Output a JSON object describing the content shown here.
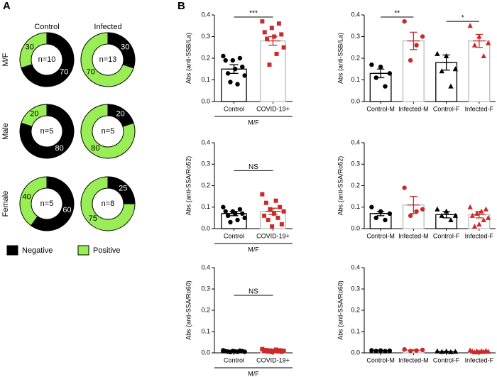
{
  "panel_a": {
    "label": "A",
    "columns": [
      "Control",
      "Infected"
    ],
    "rows": [
      "M/F",
      "Male",
      "Female"
    ]
  },
  "panel_b": {
    "label": "B"
  },
  "legend": [
    {
      "name": "Negative",
      "color": "#000000"
    },
    {
      "name": "Positive",
      "color": "#99ee55"
    }
  ],
  "chart_data": [
    {
      "type": "donut",
      "categories": [
        "Negative",
        "Positive"
      ],
      "values": [
        70,
        30
      ],
      "colors": [
        "#000000",
        "#99ee55"
      ],
      "center_label": "n=10"
    },
    {
      "type": "donut",
      "categories": [
        "Negative",
        "Positive"
      ],
      "values": [
        30,
        70
      ],
      "colors": [
        "#000000",
        "#99ee55"
      ],
      "center_label": "n=13"
    },
    {
      "type": "donut",
      "categories": [
        "Negative",
        "Positive"
      ],
      "values": [
        80,
        20
      ],
      "colors": [
        "#000000",
        "#99ee55"
      ],
      "center_label": "n=5"
    },
    {
      "type": "donut",
      "categories": [
        "Negative",
        "Positive"
      ],
      "values": [
        20,
        80
      ],
      "colors": [
        "#000000",
        "#99ee55"
      ],
      "center_label": "n=5"
    },
    {
      "type": "donut",
      "categories": [
        "Negative",
        "Positive"
      ],
      "values": [
        60,
        40
      ],
      "colors": [
        "#000000",
        "#99ee55"
      ],
      "center_label": "n=5"
    },
    {
      "type": "donut",
      "categories": [
        "Negative",
        "Positive"
      ],
      "values": [
        25,
        75
      ],
      "colors": [
        "#000000",
        "#99ee55"
      ],
      "center_label": "n=8"
    },
    {
      "type": "bar_scatter",
      "ylabel": "Abs (anti-SSB/La)",
      "categories": [
        "Control",
        "COVID-19+"
      ],
      "values": [
        0.15,
        0.28
      ],
      "errors": [
        0.02,
        0.02
      ],
      "points": [
        [
          0.21,
          0.2,
          0.19,
          0.19,
          0.16,
          0.15,
          0.13,
          0.12,
          0.08,
          0.09
        ],
        [
          0.37,
          0.36,
          0.34,
          0.32,
          0.31,
          0.3,
          0.29,
          0.25,
          0.22,
          0.17
        ]
      ],
      "colors": [
        "#000000",
        "#cc2a2a"
      ],
      "bar_edge_colors": [
        "#000000",
        "#bbbbbb"
      ],
      "markers": [
        "circle",
        "square"
      ],
      "ylim": [
        0,
        0.4
      ],
      "yticks": [
        {
          "value": 0,
          "label": "0.0"
        },
        0.1,
        0.2,
        0.3,
        0.4
      ],
      "annotations": [
        {
          "text": "***",
          "between": [
            "Control",
            "COVID-19+"
          ],
          "y": 0.39
        }
      ],
      "group_label": "M/F"
    },
    {
      "type": "bar_scatter",
      "ylabel": "Abs (anti-SSB/La)",
      "categories": [
        "Control-M",
        "Infected-M",
        "Control-F",
        "Infected-F"
      ],
      "values": [
        0.13,
        0.28,
        0.18,
        0.28
      ],
      "errors": [
        0.02,
        0.04,
        0.035,
        0.03
      ],
      "points": [
        [
          0.17,
          0.16,
          0.13,
          0.11,
          0.07
        ],
        [
          0.37,
          0.3,
          0.26,
          0.19
        ],
        [
          0.22,
          0.21,
          0.15,
          0.14,
          0.07
        ],
        [
          0.35,
          0.3,
          0.27,
          0.26,
          0.21
        ]
      ],
      "colors": [
        "#000000",
        "#cc2a2a",
        "#000000",
        "#cc2a2a"
      ],
      "bar_edge_colors": [
        "#000000",
        "#bbbbbb",
        "#000000",
        "#bbbbbb"
      ],
      "markers": [
        "circle",
        "circle",
        "triangle",
        "triangle"
      ],
      "ylim": [
        0,
        0.4
      ],
      "yticks": [
        {
          "value": 0,
          "label": "0.0"
        },
        0.1,
        0.2,
        0.3,
        0.4
      ],
      "annotations": [
        {
          "text": "**",
          "between": [
            "Control-M",
            "Infected-M"
          ],
          "y": 0.39
        },
        {
          "text": "*",
          "between": [
            "Control-F",
            "Infected-F"
          ],
          "y": 0.37
        }
      ]
    },
    {
      "type": "bar_scatter",
      "ylabel": "Abs (anti-SSA/Ro52)",
      "categories": [
        "Control",
        "COVID-19+"
      ],
      "values": [
        0.07,
        0.08
      ],
      "errors": [
        0.01,
        0.015
      ],
      "points": [
        [
          0.1,
          0.09,
          0.08,
          0.08,
          0.07,
          0.07,
          0.06,
          0.05,
          0.04,
          0.03
        ],
        [
          0.16,
          0.13,
          0.12,
          0.1,
          0.09,
          0.08,
          0.07,
          0.06,
          0.05,
          0.04,
          0.02,
          0.01
        ]
      ],
      "colors": [
        "#000000",
        "#cc2a2a"
      ],
      "bar_edge_colors": [
        "#000000",
        "#bbbbbb"
      ],
      "markers": [
        "circle",
        "square"
      ],
      "ylim": [
        0,
        0.4
      ],
      "yticks": [
        {
          "value": 0,
          "label": "0.0"
        },
        0.1,
        0.2,
        0.3,
        0.4
      ],
      "annotations": [
        {
          "text": "NS",
          "between": [
            "Control",
            "COVID-19+"
          ],
          "y": 0.27
        }
      ],
      "group_label": "M/F"
    },
    {
      "type": "bar_scatter",
      "ylabel": "Abs (anti-SSA/Ro52)",
      "categories": [
        "Control-M",
        "Infected-M",
        "Control-F",
        "Infected-F"
      ],
      "values": [
        0.07,
        0.11,
        0.065,
        0.065
      ],
      "errors": [
        0.01,
        0.04,
        0.015,
        0.015
      ],
      "points": [
        [
          0.1,
          0.08,
          0.07,
          0.05,
          0.04
        ],
        [
          0.19,
          0.09,
          0.08,
          0.06
        ],
        [
          0.09,
          0.08,
          0.06,
          0.06,
          0.04
        ],
        [
          0.1,
          0.09,
          0.08,
          0.07,
          0.06,
          0.05,
          0.04,
          0.02,
          0.01
        ]
      ],
      "colors": [
        "#000000",
        "#cc2a2a",
        "#000000",
        "#cc2a2a"
      ],
      "bar_edge_colors": [
        "#000000",
        "#bbbbbb",
        "#000000",
        "#bbbbbb"
      ],
      "markers": [
        "circle",
        "circle",
        "triangle",
        "triangle"
      ],
      "ylim": [
        0,
        0.4
      ],
      "yticks": [
        {
          "value": 0,
          "label": "0.0"
        },
        0.1,
        0.2,
        0.3,
        0.4
      ]
    },
    {
      "type": "bar_scatter",
      "ylabel": "Abs (anti-SSA/Ro60)",
      "categories": [
        "Control",
        "COVID-19+"
      ],
      "values": [
        0.008,
        0.01
      ],
      "errors": [
        0.001,
        0.001
      ],
      "points": [
        [
          0.012,
          0.01,
          0.009,
          0.008,
          0.008,
          0.007,
          0.006,
          0.005,
          0.005,
          0.004
        ],
        [
          0.018,
          0.015,
          0.013,
          0.012,
          0.011,
          0.01,
          0.009,
          0.008,
          0.007,
          0.006,
          0.005,
          0.004
        ]
      ],
      "colors": [
        "#000000",
        "#cc2a2a"
      ],
      "bar_edge_colors": [
        "#000000",
        "#bbbbbb"
      ],
      "markers": [
        "circle",
        "square"
      ],
      "ylim": [
        0,
        0.4
      ],
      "yticks": [
        {
          "value": 0,
          "label": "0.0"
        },
        0.1,
        0.2,
        0.3,
        0.4
      ],
      "annotations": [
        {
          "text": "NS",
          "between": [
            "Control",
            "COVID-19+"
          ],
          "y": 0.27
        }
      ],
      "group_label": "M/F"
    },
    {
      "type": "bar_scatter",
      "ylabel": "Abs (anti-SSA/Ro60)",
      "categories": [
        "Control-M",
        "Infected-M",
        "Control-F",
        "Infected-F"
      ],
      "values": [
        0.01,
        0.012,
        0.006,
        0.007
      ],
      "errors": [
        0.001,
        0.002,
        0.001,
        0.001
      ],
      "points": [
        [
          0.012,
          0.011,
          0.01,
          0.009,
          0.008
        ],
        [
          0.016,
          0.014,
          0.011,
          0.009
        ],
        [
          0.008,
          0.007,
          0.006,
          0.005,
          0.004
        ],
        [
          0.012,
          0.01,
          0.009,
          0.008,
          0.007,
          0.006,
          0.005,
          0.004,
          0.003
        ]
      ],
      "colors": [
        "#000000",
        "#cc2a2a",
        "#000000",
        "#cc2a2a"
      ],
      "bar_edge_colors": [
        "#000000",
        "#bbbbbb",
        "#000000",
        "#bbbbbb"
      ],
      "markers": [
        "circle",
        "circle",
        "triangle",
        "triangle"
      ],
      "ylim": [
        0,
        0.4
      ],
      "yticks": [
        {
          "value": 0,
          "label": "0.0"
        },
        0.1,
        0.2,
        0.3,
        0.4
      ]
    }
  ]
}
